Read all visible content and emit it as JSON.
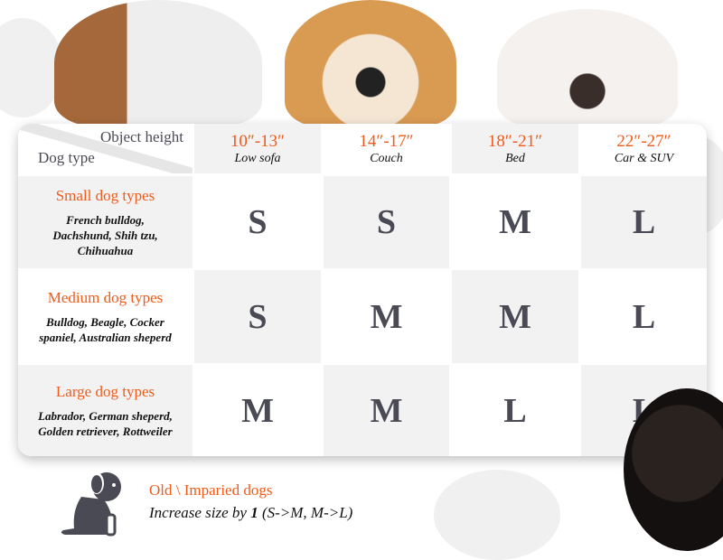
{
  "colors": {
    "accent": "#f05a1a",
    "text": "#4a4a55",
    "cell_gray": "#f2f2f2"
  },
  "header": {
    "row_label": "Object height",
    "col_label": "Dog type",
    "columns": [
      {
        "height": "10″-13″",
        "object": "Low sofa"
      },
      {
        "height": "14″-17″",
        "object": "Couch"
      },
      {
        "height": "18″-21″",
        "object": "Bed"
      },
      {
        "height": "22″-27″",
        "object": "Car & SUV"
      }
    ]
  },
  "rows": [
    {
      "title": "Small dog types",
      "breeds": "French bulldog, Dachshund, Shih tzu, Chihuahua",
      "sizes": [
        "S",
        "S",
        "M",
        "L"
      ]
    },
    {
      "title": "Medium dog types",
      "breeds": "Bulldog, Beagle, Cocker spaniel, Australian sheperd",
      "sizes": [
        "S",
        "M",
        "M",
        "L"
      ]
    },
    {
      "title": "Large dog types",
      "breeds": "Labrador, German sheperd, Golden retriever, Rottweiler",
      "sizes": [
        "M",
        "M",
        "L",
        "L"
      ]
    }
  ],
  "note": {
    "title": "Old \\ Imparied dogs",
    "text_pre": "Increase size by ",
    "text_bold": "1",
    "text_post": " (S->M, M->L)",
    "icon": "dog-icon"
  }
}
